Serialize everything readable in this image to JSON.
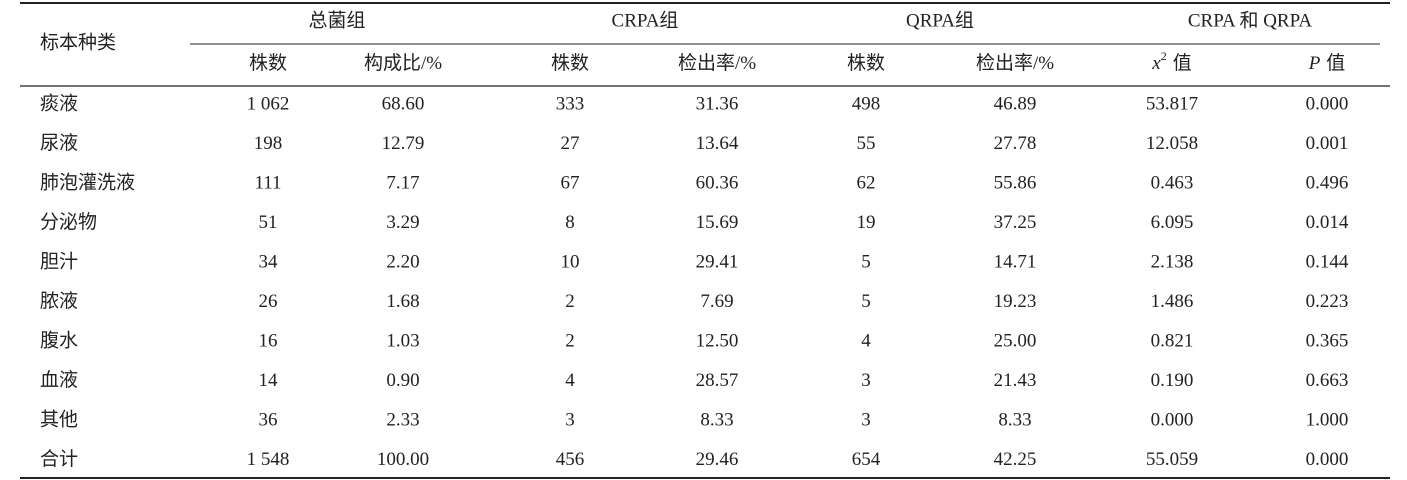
{
  "table": {
    "corner": "标本种类",
    "groups": [
      "总菌组",
      "CRPA组",
      "QRPA组",
      "CRPA 和 QRPA"
    ],
    "subheaders": [
      {
        "text": "株数"
      },
      {
        "text": "构成比/%"
      },
      {
        "text": "株数"
      },
      {
        "text": "检出率/%"
      },
      {
        "text": "株数"
      },
      {
        "text": "检出率/%"
      },
      {
        "var": "x",
        "sup": "2",
        "text": "值"
      },
      {
        "var": "P",
        "text": "值"
      }
    ],
    "rows": [
      [
        "痰液",
        "1 062",
        "68.60",
        "333",
        "31.36",
        "498",
        "46.89",
        "53.817",
        "0.000"
      ],
      [
        "尿液",
        "198",
        "12.79",
        "27",
        "13.64",
        "55",
        "27.78",
        "12.058",
        "0.001"
      ],
      [
        "肺泡灌洗液",
        "111",
        "7.17",
        "67",
        "60.36",
        "62",
        "55.86",
        "0.463",
        "0.496"
      ],
      [
        "分泌物",
        "51",
        "3.29",
        "8",
        "15.69",
        "19",
        "37.25",
        "6.095",
        "0.014"
      ],
      [
        "胆汁",
        "34",
        "2.20",
        "10",
        "29.41",
        "5",
        "14.71",
        "2.138",
        "0.144"
      ],
      [
        "脓液",
        "26",
        "1.68",
        "2",
        "7.69",
        "5",
        "19.23",
        "1.486",
        "0.223"
      ],
      [
        "腹水",
        "16",
        "1.03",
        "2",
        "12.50",
        "4",
        "25.00",
        "0.821",
        "0.365"
      ],
      [
        "血液",
        "14",
        "0.90",
        "4",
        "28.57",
        "3",
        "21.43",
        "0.190",
        "0.663"
      ],
      [
        "其他",
        "36",
        "2.33",
        "3",
        "8.33",
        "3",
        "8.33",
        "0.000",
        "1.000"
      ],
      [
        "合计",
        "1 548",
        "100.00",
        "456",
        "29.46",
        "654",
        "42.25",
        "55.059",
        "0.000"
      ]
    ]
  }
}
